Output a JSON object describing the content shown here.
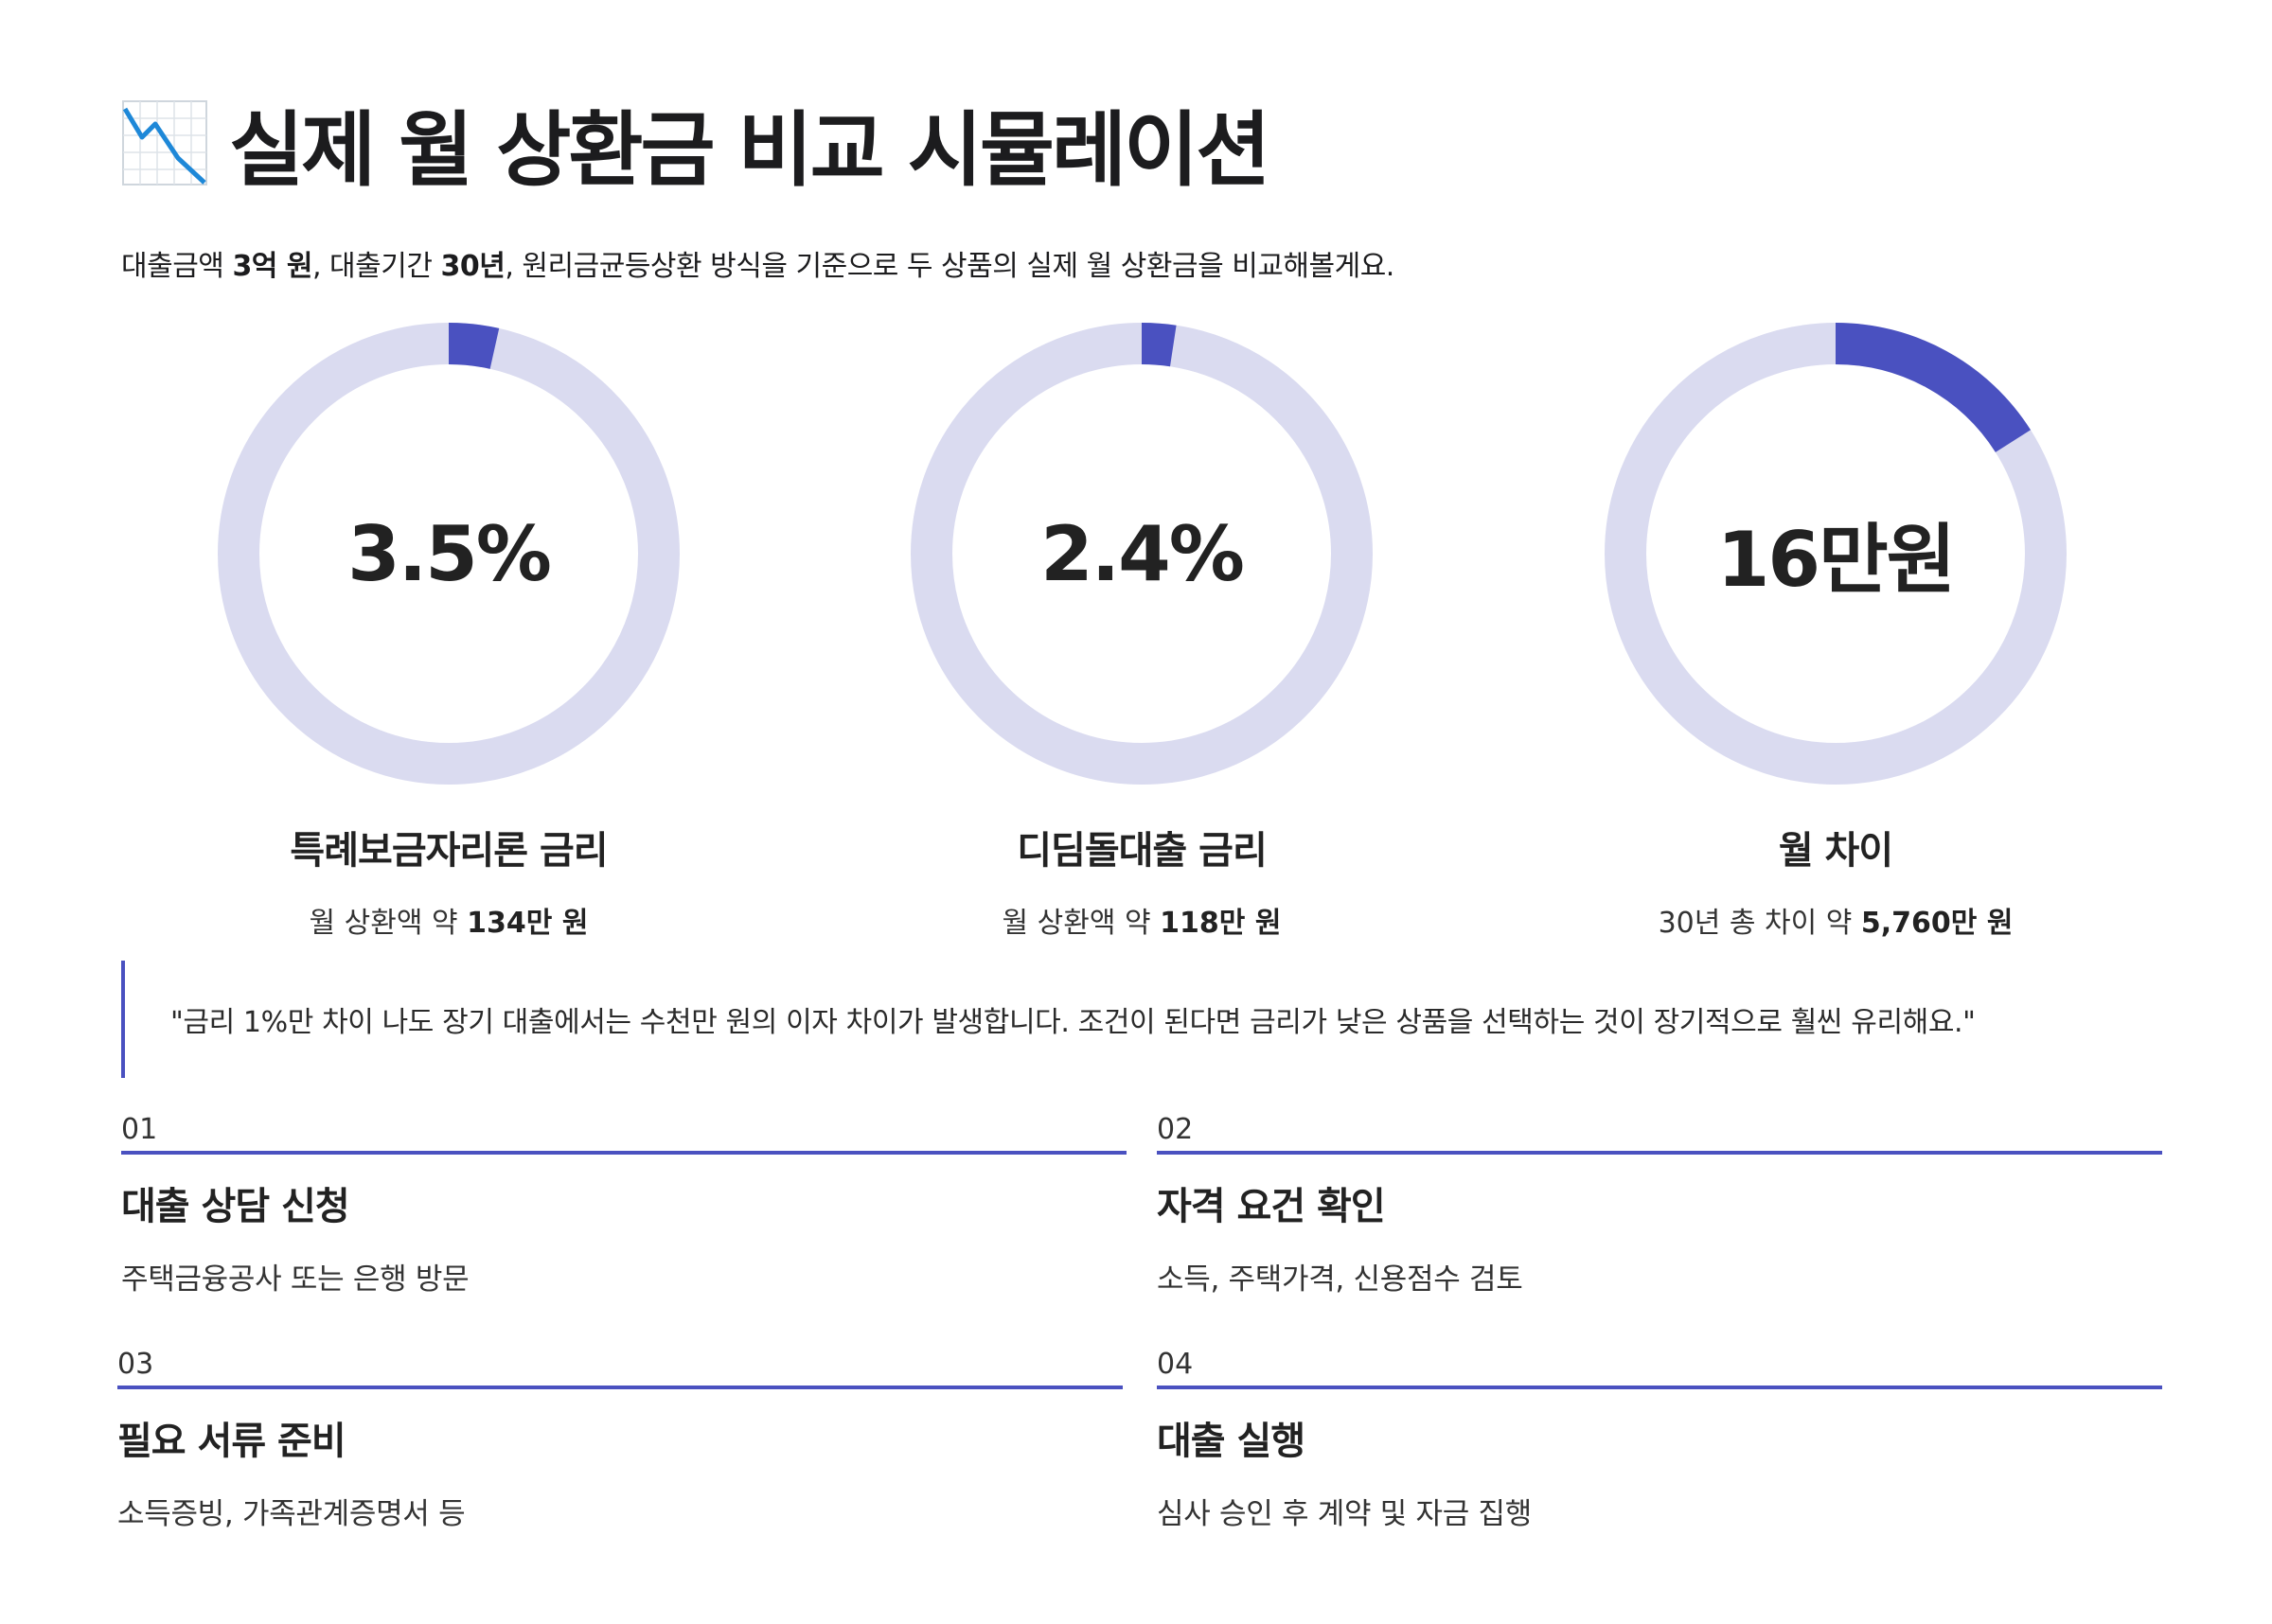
{
  "title": {
    "emoji_name": "chart-decreasing-icon",
    "text": "실제 월 상환금 비교 시뮬레이션"
  },
  "intro": {
    "part1": "대출금액 ",
    "amount": "3억 원",
    "part2": ", 대출기간 ",
    "term": "30년",
    "part3": ", 원리금균등상환 방식을 기준으로 두 상품의 실제 월 상환금을 비교해볼게요."
  },
  "stats": [
    {
      "value": "3.5%",
      "fraction": 0.035,
      "label": "특례보금자리론 금리",
      "sub_prefix": "월 상환액 약 ",
      "sub_strong": "134만 원"
    },
    {
      "value": "2.4%",
      "fraction": 0.024,
      "label": "디딤돌대출 금리",
      "sub_prefix": "월 상환액 약 ",
      "sub_strong": "118만 원"
    },
    {
      "value": "16만원",
      "fraction": 0.16,
      "label": "월 차이",
      "sub_prefix": "30년 총 차이 약 ",
      "sub_strong": "5,760만 원"
    }
  ],
  "quote": "\"금리 1%만 차이 나도 장기 대출에서는 수천만 원의 이자 차이가 발생합니다. 조건이 된다면 금리가 낮은 상품을 선택하는 것이 장기적으로 훨씬 유리해요.\"",
  "steps": [
    {
      "num": "01",
      "title": "대출 상담 신청",
      "desc": "주택금융공사 또는 은행 방문"
    },
    {
      "num": "02",
      "title": "자격 요건 확인",
      "desc": "소득, 주택가격, 신용점수 검토"
    },
    {
      "num": "03",
      "title": "필요 서류 준비",
      "desc": "소득증빙, 가족관계증명서 등"
    },
    {
      "num": "04",
      "title": "대출 실행",
      "desc": "심사 승인 후 계약 및 자금 집행"
    }
  ],
  "colors": {
    "accent": "#4a51c0",
    "track": "#dadbf0",
    "track_border": "#c8c9e2",
    "text": "#1c1c1e"
  }
}
